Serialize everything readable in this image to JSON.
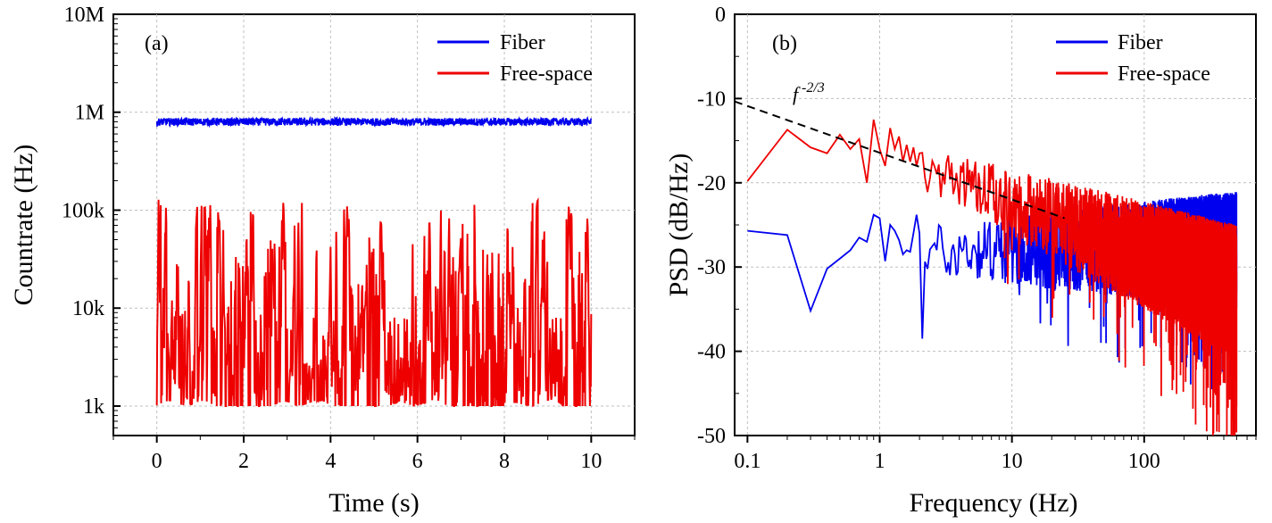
{
  "colors": {
    "fiber": "#0000ee",
    "free_space": "#ee0000",
    "trend": "#000000",
    "grid": "#bfbfbf"
  },
  "chart_data": [
    {
      "type": "line",
      "panel_label": "(a)",
      "xlabel": "Time (s)",
      "ylabel": "Countrate (Hz)",
      "xlim": [
        -1,
        11
      ],
      "ylim": [
        500,
        10000000
      ],
      "y_scale": "log",
      "xticks": [
        0,
        2,
        4,
        6,
        8,
        10
      ],
      "xtick_labels": [
        "0",
        "2",
        "4",
        "6",
        "8",
        "10"
      ],
      "yticks": [
        1000,
        10000,
        100000,
        1000000,
        10000000
      ],
      "ytick_labels": [
        "1k",
        "10k",
        "100k",
        "1M",
        "10M"
      ],
      "grid": true,
      "legend_position": "top-right",
      "series": [
        {
          "name": "Fiber",
          "x": [
            0,
            10
          ],
          "y": [
            800000,
            800000
          ],
          "description_noise": "fluctuates between about 720k and 880k"
        },
        {
          "name": "Free-space",
          "x": [
            0,
            10
          ],
          "y": [
            1000,
            140000
          ],
          "description_noise": "fluctuates between 1k and about 140k"
        }
      ]
    },
    {
      "type": "line",
      "panel_label": "(b)",
      "xlabel": "Frequency (Hz)",
      "ylabel": "PSD (dB/Hz)",
      "xlim": [
        0.08,
        700
      ],
      "ylim": [
        -50,
        0
      ],
      "x_scale": "log",
      "xticks": [
        0.1,
        1,
        10,
        100
      ],
      "xtick_labels": [
        "0.1",
        "1",
        "10",
        "100"
      ],
      "yticks": [
        0,
        -10,
        -20,
        -30,
        -40,
        -50
      ],
      "ytick_labels": [
        "0",
        "-10",
        "-20",
        "-30",
        "-40",
        "-50"
      ],
      "grid": true,
      "legend_position": "top-right",
      "annotation": {
        "base": "f",
        "exponent": "-2/3"
      },
      "series": [
        {
          "name": "Fiber",
          "x": [
            0.1,
            0.2,
            0.3,
            0.4,
            0.5,
            0.6,
            0.7,
            0.8,
            0.9,
            1.0,
            1.1,
            1.2,
            1.3,
            1.4,
            1.5,
            1.6,
            1.7,
            1.8,
            1.9,
            2.0,
            2.1
          ],
          "y": [
            -25.7,
            -26.2,
            -35.2,
            -30.2,
            -29.0,
            -28.0,
            -26.5,
            -27.0,
            -23.8,
            -24.2,
            -29.3,
            -25.0,
            -25.7,
            -26.8,
            -28.5,
            -28.0,
            -28.2,
            -26.0,
            -23.8,
            -26.0,
            -38.5
          ],
          "noise_tail": {
            "from": 2.2,
            "to": 500,
            "start_mean": -28,
            "end_mean": -28,
            "start_spread": 3,
            "end_spread": 7,
            "min": -47,
            "max": -21
          }
        },
        {
          "name": "Free-space",
          "x": [
            0.1,
            0.2,
            0.3,
            0.4,
            0.5,
            0.6,
            0.7,
            0.8,
            0.9,
            1.0,
            1.1,
            1.2,
            1.3,
            1.4,
            1.5,
            1.6,
            1.7,
            1.8,
            1.9,
            2.0
          ],
          "y": [
            -19.8,
            -13.7,
            -15.8,
            -16.5,
            -14.3,
            -16.0,
            -14.8,
            -20.0,
            -12.5,
            -16.0,
            -18.0,
            -13.5,
            -16.0,
            -14.5,
            -17.5,
            -15.5,
            -17.5,
            -15.8,
            -18.0,
            -16.5
          ],
          "noise_tail": {
            "from": 2.1,
            "to": 500,
            "start_mean": -18,
            "end_mean": -33,
            "start_spread": 2.5,
            "end_spread": 8,
            "min": -50,
            "max": -15
          }
        },
        {
          "name": "f^-2/3 trend",
          "x": [
            0.08,
            25
          ],
          "y": [
            -10.35,
            -24.2
          ]
        }
      ]
    }
  ]
}
